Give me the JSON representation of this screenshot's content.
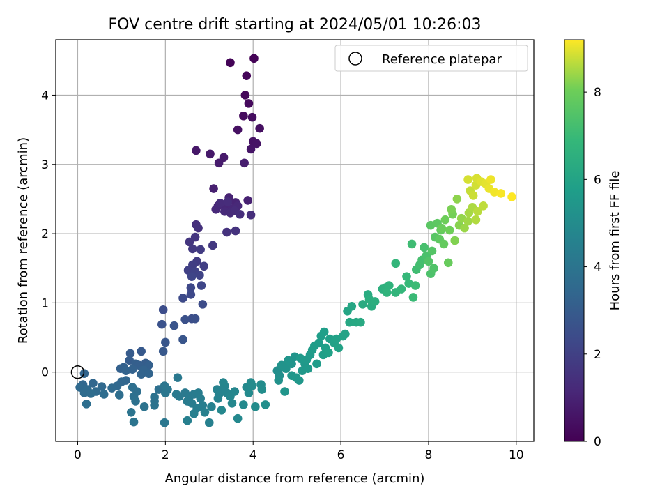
{
  "chart_data": {
    "type": "scatter",
    "title": "FOV centre drift starting at 2024/05/01 10:26:03",
    "xlabel": "Angular distance from reference (arcmin)",
    "ylabel": "Rotation from reference (arcmin)",
    "xlim": [
      -0.5,
      10.4
    ],
    "ylim": [
      -1.0,
      4.8
    ],
    "xticks": [
      "0",
      "2",
      "4",
      "6",
      "8",
      "10"
    ],
    "yticks": [
      "0",
      "1",
      "2",
      "3",
      "4"
    ],
    "grid": true,
    "legend": {
      "position": "top-right",
      "label": "Reference platepar",
      "marker": "open-circle"
    },
    "reference_point": {
      "x": 0,
      "y": 0
    },
    "colorbar": {
      "label": "Hours from first FF file",
      "colormap": "viridis",
      "range": [
        0,
        9.2
      ],
      "ticks": [
        "0",
        "2",
        "4",
        "6",
        "8"
      ]
    },
    "points": [
      {
        "x": 4.02,
        "y": 4.53,
        "h": 0.05
      },
      {
        "x": 3.48,
        "y": 4.47,
        "h": 0.1
      },
      {
        "x": 3.85,
        "y": 4.28,
        "h": 0.15
      },
      {
        "x": 3.82,
        "y": 4.0,
        "h": 0.2
      },
      {
        "x": 3.9,
        "y": 3.88,
        "h": 0.25
      },
      {
        "x": 3.78,
        "y": 3.7,
        "h": 0.3
      },
      {
        "x": 3.98,
        "y": 3.68,
        "h": 0.35
      },
      {
        "x": 4.15,
        "y": 3.52,
        "h": 0.4
      },
      {
        "x": 3.65,
        "y": 3.5,
        "h": 0.45
      },
      {
        "x": 4.0,
        "y": 3.33,
        "h": 0.5
      },
      {
        "x": 4.08,
        "y": 3.3,
        "h": 0.55
      },
      {
        "x": 3.95,
        "y": 3.22,
        "h": 0.6
      },
      {
        "x": 2.7,
        "y": 3.2,
        "h": 0.65
      },
      {
        "x": 3.02,
        "y": 3.15,
        "h": 0.7
      },
      {
        "x": 3.33,
        "y": 3.1,
        "h": 0.75
      },
      {
        "x": 3.22,
        "y": 3.02,
        "h": 0.8
      },
      {
        "x": 3.8,
        "y": 3.02,
        "h": 0.85
      },
      {
        "x": 3.1,
        "y": 2.65,
        "h": 0.9
      },
      {
        "x": 3.88,
        "y": 2.48,
        "h": 0.95
      },
      {
        "x": 3.45,
        "y": 2.52,
        "h": 1.0
      },
      {
        "x": 3.6,
        "y": 2.45,
        "h": 1.05
      },
      {
        "x": 3.2,
        "y": 2.4,
        "h": 1.08
      },
      {
        "x": 3.3,
        "y": 2.42,
        "h": 1.1
      },
      {
        "x": 3.4,
        "y": 2.38,
        "h": 1.12
      },
      {
        "x": 3.52,
        "y": 2.36,
        "h": 1.15
      },
      {
        "x": 3.65,
        "y": 2.4,
        "h": 1.18
      },
      {
        "x": 3.15,
        "y": 2.35,
        "h": 1.2
      },
      {
        "x": 3.35,
        "y": 2.32,
        "h": 1.22
      },
      {
        "x": 3.48,
        "y": 2.3,
        "h": 1.25
      },
      {
        "x": 3.58,
        "y": 2.33,
        "h": 1.28
      },
      {
        "x": 3.25,
        "y": 2.44,
        "h": 1.3
      },
      {
        "x": 3.42,
        "y": 2.46,
        "h": 1.32
      },
      {
        "x": 3.7,
        "y": 2.28,
        "h": 1.35
      },
      {
        "x": 3.95,
        "y": 2.27,
        "h": 1.38
      },
      {
        "x": 2.7,
        "y": 2.13,
        "h": 1.4
      },
      {
        "x": 2.75,
        "y": 2.08,
        "h": 1.45
      },
      {
        "x": 3.4,
        "y": 2.02,
        "h": 1.5
      },
      {
        "x": 3.6,
        "y": 2.04,
        "h": 1.55
      },
      {
        "x": 2.68,
        "y": 1.95,
        "h": 1.6
      },
      {
        "x": 2.55,
        "y": 1.88,
        "h": 1.65
      },
      {
        "x": 3.08,
        "y": 1.83,
        "h": 1.7
      },
      {
        "x": 2.62,
        "y": 1.78,
        "h": 1.75
      },
      {
        "x": 2.8,
        "y": 1.77,
        "h": 1.8
      },
      {
        "x": 2.72,
        "y": 1.6,
        "h": 1.85
      },
      {
        "x": 2.62,
        "y": 1.55,
        "h": 1.9
      },
      {
        "x": 2.88,
        "y": 1.53,
        "h": 1.95
      },
      {
        "x": 2.52,
        "y": 1.47,
        "h": 2.0
      },
      {
        "x": 2.68,
        "y": 1.45,
        "h": 2.05
      },
      {
        "x": 2.78,
        "y": 1.4,
        "h": 2.1
      },
      {
        "x": 2.6,
        "y": 1.38,
        "h": 2.15
      },
      {
        "x": 2.82,
        "y": 1.25,
        "h": 2.2
      },
      {
        "x": 2.58,
        "y": 1.22,
        "h": 2.25
      },
      {
        "x": 2.58,
        "y": 1.12,
        "h": 2.3
      },
      {
        "x": 2.4,
        "y": 1.07,
        "h": 2.35
      },
      {
        "x": 2.85,
        "y": 0.98,
        "h": 2.4
      },
      {
        "x": 1.95,
        "y": 0.9,
        "h": 2.45
      },
      {
        "x": 2.6,
        "y": 0.77,
        "h": 2.5
      },
      {
        "x": 2.68,
        "y": 0.77,
        "h": 2.55
      },
      {
        "x": 2.45,
        "y": 0.76,
        "h": 2.6
      },
      {
        "x": 1.92,
        "y": 0.69,
        "h": 2.65
      },
      {
        "x": 2.2,
        "y": 0.67,
        "h": 2.7
      },
      {
        "x": 2.4,
        "y": 0.47,
        "h": 2.75
      },
      {
        "x": 2.0,
        "y": 0.43,
        "h": 2.8
      },
      {
        "x": 1.95,
        "y": 0.3,
        "h": 2.85
      },
      {
        "x": 1.45,
        "y": 0.3,
        "h": 2.9
      },
      {
        "x": 1.2,
        "y": 0.27,
        "h": 2.95
      },
      {
        "x": 1.18,
        "y": 0.17,
        "h": 3.0
      },
      {
        "x": 1.55,
        "y": 0.13,
        "h": 3.05
      },
      {
        "x": 1.32,
        "y": 0.12,
        "h": 3.1
      },
      {
        "x": 1.4,
        "y": 0.1,
        "h": 3.12
      },
      {
        "x": 1.62,
        "y": 0.1,
        "h": 3.15
      },
      {
        "x": 1.05,
        "y": 0.07,
        "h": 3.18
      },
      {
        "x": 0.98,
        "y": 0.05,
        "h": 3.2
      },
      {
        "x": 1.25,
        "y": 0.04,
        "h": 3.22
      },
      {
        "x": 1.5,
        "y": 0.03,
        "h": 3.25
      },
      {
        "x": 1.1,
        "y": 0.02,
        "h": 3.28
      },
      {
        "x": 1.45,
        "y": -0.03,
        "h": 3.3
      },
      {
        "x": 1.62,
        "y": -0.02,
        "h": 3.32
      },
      {
        "x": 0.15,
        "y": -0.02,
        "h": 3.35
      },
      {
        "x": 1.1,
        "y": -0.12,
        "h": 3.38
      },
      {
        "x": 1.0,
        "y": -0.14,
        "h": 3.4
      },
      {
        "x": 0.35,
        "y": -0.16,
        "h": 3.42
      },
      {
        "x": 0.12,
        "y": -0.18,
        "h": 3.45
      },
      {
        "x": 0.9,
        "y": -0.2,
        "h": 3.48
      },
      {
        "x": 0.55,
        "y": -0.21,
        "h": 3.5
      },
      {
        "x": 0.05,
        "y": -0.22,
        "h": 3.52
      },
      {
        "x": 0.78,
        "y": -0.23,
        "h": 3.55
      },
      {
        "x": 0.22,
        "y": -0.25,
        "h": 3.58
      },
      {
        "x": 0.42,
        "y": -0.28,
        "h": 3.6
      },
      {
        "x": 0.15,
        "y": -0.3,
        "h": 3.62
      },
      {
        "x": 0.6,
        "y": -0.32,
        "h": 3.65
      },
      {
        "x": 0.3,
        "y": -0.31,
        "h": 3.68
      },
      {
        "x": 0.95,
        "y": -0.33,
        "h": 3.7
      },
      {
        "x": 0.2,
        "y": -0.46,
        "h": 3.72
      },
      {
        "x": 1.25,
        "y": -0.22,
        "h": 3.75
      },
      {
        "x": 1.35,
        "y": -0.28,
        "h": 3.78
      },
      {
        "x": 1.85,
        "y": -0.25,
        "h": 3.8
      },
      {
        "x": 1.28,
        "y": -0.35,
        "h": 3.82
      },
      {
        "x": 1.32,
        "y": -0.42,
        "h": 3.85
      },
      {
        "x": 1.75,
        "y": -0.36,
        "h": 3.88
      },
      {
        "x": 1.75,
        "y": -0.42,
        "h": 3.9
      },
      {
        "x": 1.52,
        "y": -0.5,
        "h": 3.92
      },
      {
        "x": 1.75,
        "y": -0.48,
        "h": 3.95
      },
      {
        "x": 1.22,
        "y": -0.58,
        "h": 3.98
      },
      {
        "x": 1.28,
        "y": -0.72,
        "h": 4.0
      },
      {
        "x": 1.98,
        "y": -0.2,
        "h": 4.02
      },
      {
        "x": 2.0,
        "y": -0.3,
        "h": 4.05
      },
      {
        "x": 2.05,
        "y": -0.25,
        "h": 4.08
      },
      {
        "x": 1.98,
        "y": -0.73,
        "h": 4.1
      },
      {
        "x": 2.28,
        "y": -0.08,
        "h": 4.15
      },
      {
        "x": 2.25,
        "y": -0.32,
        "h": 4.18
      },
      {
        "x": 2.32,
        "y": -0.35,
        "h": 4.2
      },
      {
        "x": 2.45,
        "y": -0.3,
        "h": 4.22
      },
      {
        "x": 2.55,
        "y": -0.35,
        "h": 4.25
      },
      {
        "x": 2.65,
        "y": -0.32,
        "h": 4.28
      },
      {
        "x": 2.5,
        "y": -0.42,
        "h": 4.3
      },
      {
        "x": 2.6,
        "y": -0.45,
        "h": 4.32
      },
      {
        "x": 2.75,
        "y": -0.3,
        "h": 4.35
      },
      {
        "x": 2.8,
        "y": -0.38,
        "h": 4.38
      },
      {
        "x": 2.72,
        "y": -0.52,
        "h": 4.4
      },
      {
        "x": 2.85,
        "y": -0.48,
        "h": 4.42
      },
      {
        "x": 2.5,
        "y": -0.7,
        "h": 4.45
      },
      {
        "x": 2.65,
        "y": -0.6,
        "h": 4.48
      },
      {
        "x": 3.0,
        "y": -0.73,
        "h": 4.5
      },
      {
        "x": 2.9,
        "y": -0.58,
        "h": 4.52
      },
      {
        "x": 3.05,
        "y": -0.5,
        "h": 4.55
      },
      {
        "x": 3.18,
        "y": -0.25,
        "h": 4.58
      },
      {
        "x": 3.22,
        "y": -0.32,
        "h": 4.6
      },
      {
        "x": 3.2,
        "y": -0.38,
        "h": 4.62
      },
      {
        "x": 3.3,
        "y": -0.28,
        "h": 4.65
      },
      {
        "x": 3.35,
        "y": -0.2,
        "h": 4.68
      },
      {
        "x": 3.4,
        "y": -0.3,
        "h": 4.7
      },
      {
        "x": 3.32,
        "y": -0.15,
        "h": 4.72
      },
      {
        "x": 3.48,
        "y": -0.35,
        "h": 4.75
      },
      {
        "x": 3.58,
        "y": -0.28,
        "h": 4.78
      },
      {
        "x": 3.28,
        "y": -0.55,
        "h": 4.8
      },
      {
        "x": 3.52,
        "y": -0.45,
        "h": 4.82
      },
      {
        "x": 3.65,
        "y": -0.67,
        "h": 4.85
      },
      {
        "x": 3.78,
        "y": -0.47,
        "h": 4.88
      },
      {
        "x": 3.85,
        "y": -0.22,
        "h": 4.9
      },
      {
        "x": 3.9,
        "y": -0.3,
        "h": 4.92
      },
      {
        "x": 3.95,
        "y": -0.15,
        "h": 4.95
      },
      {
        "x": 3.98,
        "y": -0.2,
        "h": 4.97
      },
      {
        "x": 4.05,
        "y": -0.5,
        "h": 5.0
      },
      {
        "x": 4.18,
        "y": -0.18,
        "h": 5.02
      },
      {
        "x": 4.2,
        "y": -0.25,
        "h": 5.05
      },
      {
        "x": 4.28,
        "y": -0.47,
        "h": 5.08
      },
      {
        "x": 4.55,
        "y": 0.02,
        "h": 5.1
      },
      {
        "x": 4.6,
        "y": -0.05,
        "h": 5.15
      },
      {
        "x": 4.58,
        "y": -0.12,
        "h": 5.2
      },
      {
        "x": 4.7,
        "y": 0.08,
        "h": 5.25
      },
      {
        "x": 4.65,
        "y": 0.1,
        "h": 5.28
      },
      {
        "x": 4.75,
        "y": 0.05,
        "h": 5.3
      },
      {
        "x": 4.88,
        "y": 0.12,
        "h": 5.32
      },
      {
        "x": 4.95,
        "y": 0.22,
        "h": 5.35
      },
      {
        "x": 4.8,
        "y": 0.17,
        "h": 5.38
      },
      {
        "x": 4.72,
        "y": -0.28,
        "h": 5.4
      },
      {
        "x": 4.88,
        "y": -0.05,
        "h": 5.42
      },
      {
        "x": 4.98,
        "y": -0.08,
        "h": 5.45
      },
      {
        "x": 5.05,
        "y": -0.12,
        "h": 5.48
      },
      {
        "x": 5.12,
        "y": 0.02,
        "h": 5.5
      },
      {
        "x": 5.18,
        "y": 0.12,
        "h": 5.52
      },
      {
        "x": 5.25,
        "y": 0.05,
        "h": 5.55
      },
      {
        "x": 5.08,
        "y": 0.2,
        "h": 5.58
      },
      {
        "x": 5.22,
        "y": 0.18,
        "h": 5.6
      },
      {
        "x": 5.3,
        "y": 0.25,
        "h": 5.62
      },
      {
        "x": 5.35,
        "y": 0.32,
        "h": 5.65
      },
      {
        "x": 5.45,
        "y": 0.12,
        "h": 5.68
      },
      {
        "x": 5.4,
        "y": 0.38,
        "h": 5.7
      },
      {
        "x": 5.5,
        "y": 0.42,
        "h": 5.72
      },
      {
        "x": 5.55,
        "y": 0.52,
        "h": 5.75
      },
      {
        "x": 5.62,
        "y": 0.58,
        "h": 5.78
      },
      {
        "x": 5.6,
        "y": 0.25,
        "h": 5.8
      },
      {
        "x": 5.65,
        "y": 0.35,
        "h": 5.82
      },
      {
        "x": 5.75,
        "y": 0.48,
        "h": 5.85
      },
      {
        "x": 5.72,
        "y": 0.28,
        "h": 5.88
      },
      {
        "x": 5.85,
        "y": 0.42,
        "h": 5.9
      },
      {
        "x": 5.9,
        "y": 0.48,
        "h": 5.92
      },
      {
        "x": 5.95,
        "y": 0.35,
        "h": 5.95
      },
      {
        "x": 6.05,
        "y": 0.52,
        "h": 5.98
      },
      {
        "x": 6.1,
        "y": 0.55,
        "h": 6.0
      },
      {
        "x": 6.15,
        "y": 0.88,
        "h": 6.05
      },
      {
        "x": 6.25,
        "y": 0.95,
        "h": 6.1
      },
      {
        "x": 6.2,
        "y": 0.72,
        "h": 6.15
      },
      {
        "x": 6.35,
        "y": 0.72,
        "h": 6.2
      },
      {
        "x": 6.45,
        "y": 0.72,
        "h": 6.25
      },
      {
        "x": 6.5,
        "y": 0.98,
        "h": 6.3
      },
      {
        "x": 6.62,
        "y": 1.12,
        "h": 6.35
      },
      {
        "x": 6.7,
        "y": 0.95,
        "h": 6.4
      },
      {
        "x": 6.65,
        "y": 1.05,
        "h": 6.45
      },
      {
        "x": 6.78,
        "y": 1.02,
        "h": 6.5
      },
      {
        "x": 6.95,
        "y": 1.2,
        "h": 6.55
      },
      {
        "x": 7.02,
        "y": 1.22,
        "h": 6.6
      },
      {
        "x": 7.1,
        "y": 1.25,
        "h": 6.65
      },
      {
        "x": 7.05,
        "y": 1.15,
        "h": 6.7
      },
      {
        "x": 7.25,
        "y": 1.15,
        "h": 6.75
      },
      {
        "x": 7.25,
        "y": 1.57,
        "h": 6.8
      },
      {
        "x": 7.38,
        "y": 1.2,
        "h": 6.85
      },
      {
        "x": 7.5,
        "y": 1.38,
        "h": 6.9
      },
      {
        "x": 7.55,
        "y": 1.28,
        "h": 6.95
      },
      {
        "x": 7.65,
        "y": 1.08,
        "h": 7.0
      },
      {
        "x": 7.7,
        "y": 1.25,
        "h": 7.05
      },
      {
        "x": 7.62,
        "y": 1.85,
        "h": 7.1
      },
      {
        "x": 7.72,
        "y": 1.48,
        "h": 7.15
      },
      {
        "x": 7.8,
        "y": 1.55,
        "h": 7.2
      },
      {
        "x": 7.85,
        "y": 1.62,
        "h": 7.25
      },
      {
        "x": 7.9,
        "y": 1.8,
        "h": 7.3
      },
      {
        "x": 7.95,
        "y": 1.68,
        "h": 7.35
      },
      {
        "x": 8.05,
        "y": 1.42,
        "h": 7.4
      },
      {
        "x": 8.12,
        "y": 1.5,
        "h": 7.45
      },
      {
        "x": 8.0,
        "y": 1.6,
        "h": 7.5
      },
      {
        "x": 8.08,
        "y": 1.75,
        "h": 7.55
      },
      {
        "x": 8.15,
        "y": 1.95,
        "h": 7.6
      },
      {
        "x": 8.05,
        "y": 2.12,
        "h": 7.65
      },
      {
        "x": 8.2,
        "y": 2.15,
        "h": 7.7
      },
      {
        "x": 8.25,
        "y": 1.92,
        "h": 7.75
      },
      {
        "x": 8.28,
        "y": 2.05,
        "h": 7.8
      },
      {
        "x": 8.35,
        "y": 1.85,
        "h": 7.85
      },
      {
        "x": 8.45,
        "y": 1.58,
        "h": 7.9
      },
      {
        "x": 8.3,
        "y": 2.08,
        "h": 7.95
      },
      {
        "x": 8.38,
        "y": 2.2,
        "h": 8.0
      },
      {
        "x": 8.48,
        "y": 2.05,
        "h": 8.05
      },
      {
        "x": 8.55,
        "y": 2.28,
        "h": 8.1
      },
      {
        "x": 8.52,
        "y": 2.35,
        "h": 8.15
      },
      {
        "x": 8.6,
        "y": 1.9,
        "h": 8.2
      },
      {
        "x": 8.7,
        "y": 2.12,
        "h": 8.25
      },
      {
        "x": 8.65,
        "y": 2.5,
        "h": 8.3
      },
      {
        "x": 8.75,
        "y": 2.22,
        "h": 8.35
      },
      {
        "x": 8.82,
        "y": 2.08,
        "h": 8.4
      },
      {
        "x": 8.9,
        "y": 2.18,
        "h": 8.45
      },
      {
        "x": 8.92,
        "y": 2.3,
        "h": 8.5
      },
      {
        "x": 9.0,
        "y": 2.38,
        "h": 8.55
      },
      {
        "x": 9.08,
        "y": 2.2,
        "h": 8.6
      },
      {
        "x": 9.12,
        "y": 2.32,
        "h": 8.65
      },
      {
        "x": 9.25,
        "y": 2.4,
        "h": 8.7
      },
      {
        "x": 8.95,
        "y": 2.62,
        "h": 8.75
      },
      {
        "x": 9.02,
        "y": 2.55,
        "h": 8.8
      },
      {
        "x": 9.08,
        "y": 2.7,
        "h": 8.85
      },
      {
        "x": 8.9,
        "y": 2.78,
        "h": 8.88
      },
      {
        "x": 9.1,
        "y": 2.8,
        "h": 8.9
      },
      {
        "x": 9.2,
        "y": 2.75,
        "h": 8.95
      },
      {
        "x": 9.3,
        "y": 2.72,
        "h": 9.0
      },
      {
        "x": 9.38,
        "y": 2.65,
        "h": 9.05
      },
      {
        "x": 9.42,
        "y": 2.78,
        "h": 9.08
      },
      {
        "x": 9.5,
        "y": 2.6,
        "h": 9.1
      },
      {
        "x": 9.65,
        "y": 2.58,
        "h": 9.15
      },
      {
        "x": 9.9,
        "y": 2.53,
        "h": 9.2
      }
    ]
  }
}
